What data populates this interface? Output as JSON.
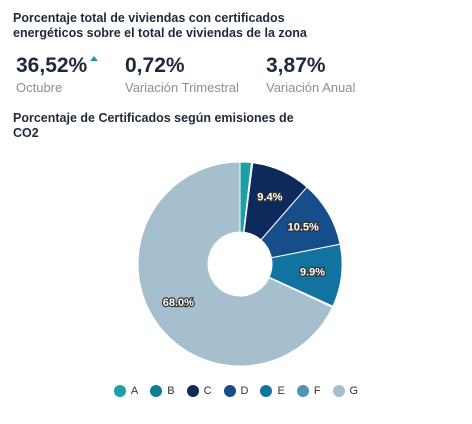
{
  "header": {
    "title": "Porcentaje total de viviendas con certificados energéticos sobre el total de viviendas de la zona"
  },
  "kpis": [
    {
      "value": "36,52%",
      "label": "Octubre",
      "trend": "up"
    },
    {
      "value": "0,72%",
      "label": "Variación Trimestral"
    },
    {
      "value": "3,87%",
      "label": "Variación Anual"
    }
  ],
  "chart_data": {
    "type": "pie",
    "variant": "donut",
    "title": "Porcentaje de Certificados según emisiones de CO2",
    "categories": [
      "A",
      "B",
      "C",
      "D",
      "E",
      "F",
      "G"
    ],
    "values": [
      1.8,
      0.2,
      9.4,
      10.5,
      9.9,
      0.2,
      68.0
    ],
    "data_labels": [
      "",
      "",
      "9.4%",
      "10.5%",
      "9.9%",
      "",
      "68.0%"
    ],
    "colors": [
      "#1aa0a6",
      "#0b7f8f",
      "#0e2a5c",
      "#154e8a",
      "#1272a0",
      "#4f93b5",
      "#a6bfce"
    ],
    "legend_position": "bottom"
  }
}
